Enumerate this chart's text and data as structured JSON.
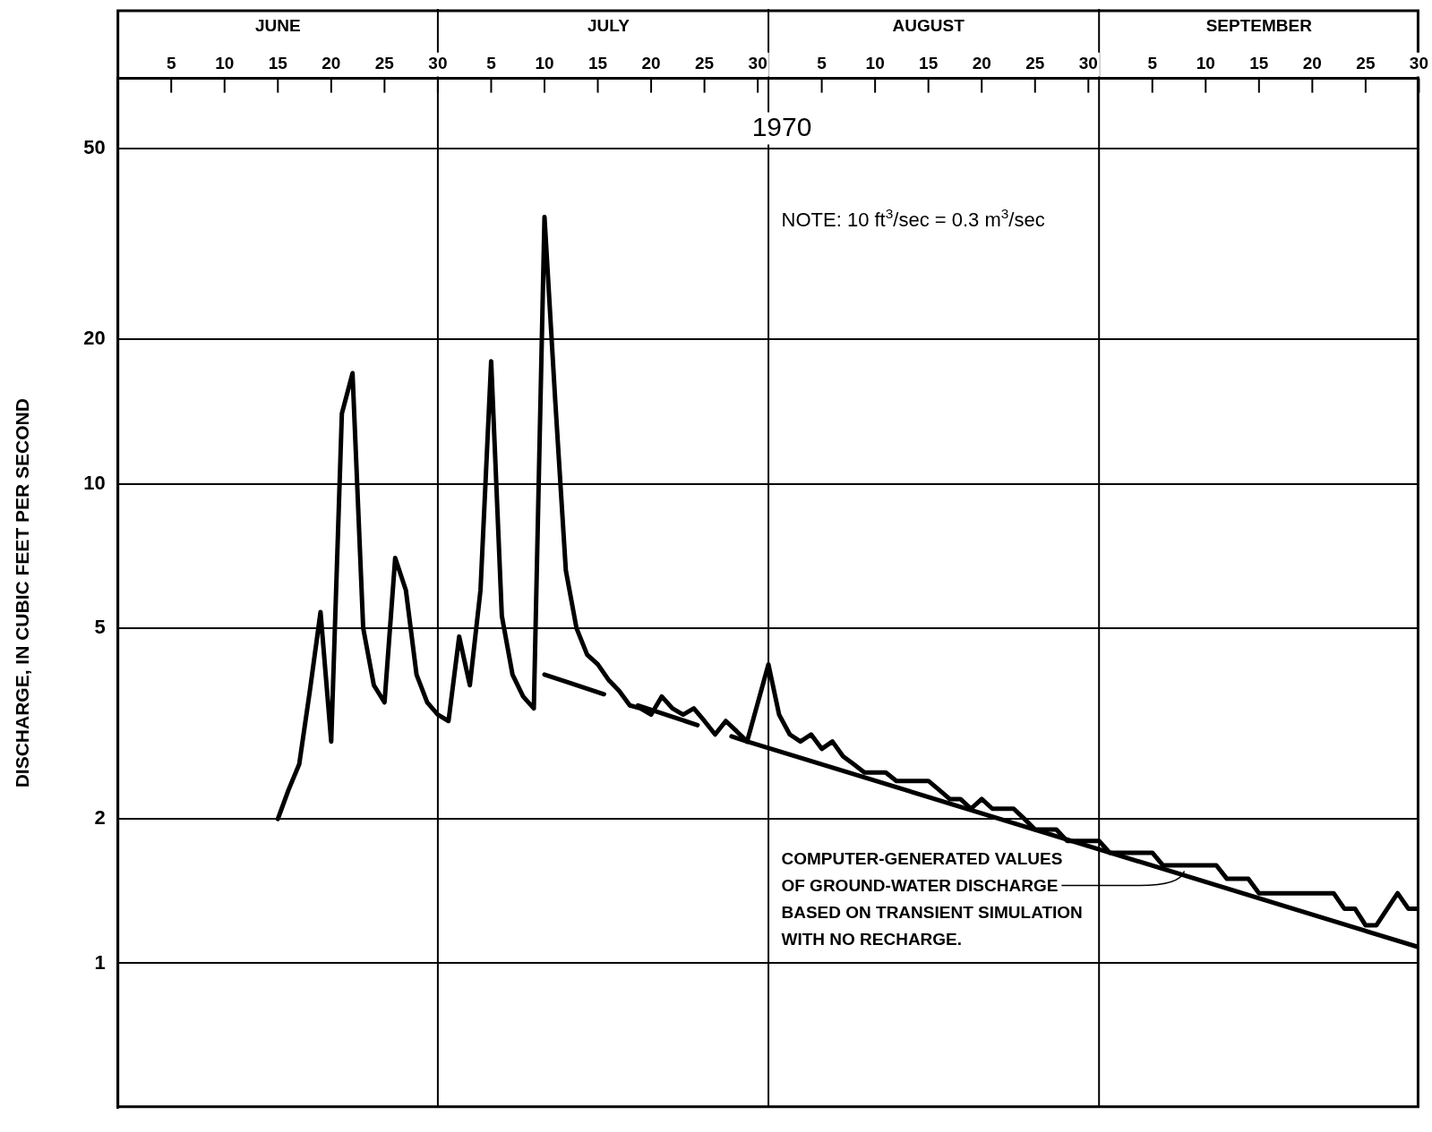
{
  "chart_data": {
    "type": "line",
    "title": "1970",
    "ylabel": "DISCHARGE, IN CUBIC FEET PER SECOND",
    "log": "y",
    "grid": "y",
    "legend": false,
    "marker": "none",
    "xlim": [
      "1970-05-31",
      "1970-09-30"
    ],
    "xticks": [
      {
        "value": "1970-06-05",
        "label": "5"
      },
      {
        "value": "1970-06-10",
        "label": "10"
      },
      {
        "value": "1970-06-15",
        "label": "15"
      },
      {
        "value": "1970-06-20",
        "label": "20"
      },
      {
        "value": "1970-06-25",
        "label": "25"
      },
      {
        "value": "1970-06-30",
        "label": "30"
      },
      {
        "value": "1970-07-05",
        "label": "5"
      },
      {
        "value": "1970-07-10",
        "label": "10"
      },
      {
        "value": "1970-07-15",
        "label": "15"
      },
      {
        "value": "1970-07-20",
        "label": "20"
      },
      {
        "value": "1970-07-25",
        "label": "25"
      },
      {
        "value": "1970-07-30",
        "label": "30"
      },
      {
        "value": "1970-08-05",
        "label": "5"
      },
      {
        "value": "1970-08-10",
        "label": "10"
      },
      {
        "value": "1970-08-15",
        "label": "15"
      },
      {
        "value": "1970-08-20",
        "label": "20"
      },
      {
        "value": "1970-08-25",
        "label": "25"
      },
      {
        "value": "1970-08-30",
        "label": "30"
      },
      {
        "value": "1970-09-05",
        "label": "5"
      },
      {
        "value": "1970-09-10",
        "label": "10"
      },
      {
        "value": "1970-09-15",
        "label": "15"
      },
      {
        "value": "1970-09-20",
        "label": "20"
      },
      {
        "value": "1970-09-25",
        "label": "25"
      },
      {
        "value": "1970-09-30",
        "label": "30"
      }
    ],
    "x2lim": [
      "1970-05-31",
      "1970-09-30"
    ],
    "x2ticks": [
      {
        "value": "1970-06-15",
        "label": "JUNE"
      },
      {
        "value": "1970-07-16",
        "label": "JULY"
      },
      {
        "value": "1970-08-15",
        "label": "AUGUST"
      },
      {
        "value": "1970-09-15",
        "label": "SEPTEMBER"
      }
    ],
    "ylim": [
      0.5,
      70
    ],
    "yticks": [
      1,
      2,
      5,
      10,
      20,
      50
    ],
    "ref_lines": [
      {
        "axis": "x",
        "value": "1970-06-30",
        "color": "#000000"
      },
      {
        "axis": "x",
        "value": "1970-07-31",
        "color": "#000000"
      },
      {
        "axis": "x",
        "value": "1970-08-31",
        "color": "#000000"
      }
    ],
    "series": [
      {
        "color": "#000000",
        "x": [
          "1970-06-15",
          "1970-06-16",
          "1970-06-17",
          "1970-06-18",
          "1970-06-19",
          "1970-06-20",
          "1970-06-21",
          "1970-06-22",
          "1970-06-23",
          "1970-06-24",
          "1970-06-25",
          "1970-06-26",
          "1970-06-27",
          "1970-06-28",
          "1970-06-29",
          "1970-06-30",
          "1970-07-01",
          "1970-07-02",
          "1970-07-03",
          "1970-07-04",
          "1970-07-05",
          "1970-07-06",
          "1970-07-07",
          "1970-07-08",
          "1970-07-09",
          "1970-07-10",
          "1970-07-11",
          "1970-07-12",
          "1970-07-13",
          "1970-07-14",
          "1970-07-15",
          "1970-07-16",
          "1970-07-17",
          "1970-07-18",
          "1970-07-19",
          "1970-07-20",
          "1970-07-21",
          "1970-07-22",
          "1970-07-23",
          "1970-07-24",
          "1970-07-25",
          "1970-07-26",
          "1970-07-27",
          "1970-07-28",
          "1970-07-29",
          "1970-07-31",
          "1970-08-01",
          "1970-08-02",
          "1970-08-03",
          "1970-08-04",
          "1970-08-05",
          "1970-08-06",
          "1970-08-07",
          "1970-08-08",
          "1970-08-09",
          "1970-08-11",
          "1970-08-12",
          "1970-08-15",
          "1970-08-16",
          "1970-08-17",
          "1970-08-18",
          "1970-08-19",
          "1970-08-20",
          "1970-08-21",
          "1970-08-23",
          "1970-08-24",
          "1970-08-25",
          "1970-08-27",
          "1970-08-28",
          "1970-08-31",
          "1970-09-01",
          "1970-09-05",
          "1970-09-06",
          "1970-09-11",
          "1970-09-12",
          "1970-09-14",
          "1970-09-15",
          "1970-09-22",
          "1970-09-23",
          "1970-09-24",
          "1970-09-25",
          "1970-09-26",
          "1970-09-28",
          "1970-09-29",
          "1970-09-30"
        ],
        "values": [
          2.0,
          2.3,
          2.6,
          3.7,
          5.4,
          2.9,
          14,
          17,
          5.0,
          3.8,
          3.5,
          7.0,
          6.0,
          4.0,
          3.5,
          3.3,
          3.2,
          4.8,
          3.8,
          6.0,
          18,
          5.3,
          4.0,
          3.6,
          3.4,
          36,
          15,
          6.6,
          5.0,
          4.4,
          4.2,
          3.9,
          3.7,
          3.45,
          3.4,
          3.3,
          3.6,
          3.4,
          3.3,
          3.4,
          3.2,
          3.0,
          3.2,
          3.05,
          2.9,
          4.2,
          3.3,
          3.0,
          2.9,
          3.0,
          2.8,
          2.9,
          2.7,
          2.6,
          2.5,
          2.5,
          2.4,
          2.4,
          2.3,
          2.2,
          2.2,
          2.1,
          2.2,
          2.1,
          2.1,
          2.0,
          1.9,
          1.9,
          1.8,
          1.8,
          1.7,
          1.7,
          1.6,
          1.6,
          1.5,
          1.5,
          1.4,
          1.4,
          1.3,
          1.3,
          1.2,
          1.2,
          1.4,
          1.3,
          1.3
        ]
      },
      {
        "color": "#000000",
        "line_style": "dashed",
        "x": [
          "1970-07-10",
          "1970-07-29"
        ],
        "values": [
          4.0,
          2.9
        ]
      },
      {
        "color": "#000000",
        "x": [
          "1970-07-29",
          "1970-09-30"
        ],
        "values": [
          2.9,
          1.08
        ]
      }
    ],
    "annotations": [
      "NOTE: 10 ft$^{3}$/sec = 0.3 m$^{3}$/sec",
      {
        "text": "COMPUTER-GENERATED VALUES\nOF GROUND-WATER DISCHARGE\nBASED ON TRANSIENT SIMULATION\nWITH NO RECHARGE.",
        "x": "1970-09-08",
        "y": 1.57
      }
    ]
  }
}
